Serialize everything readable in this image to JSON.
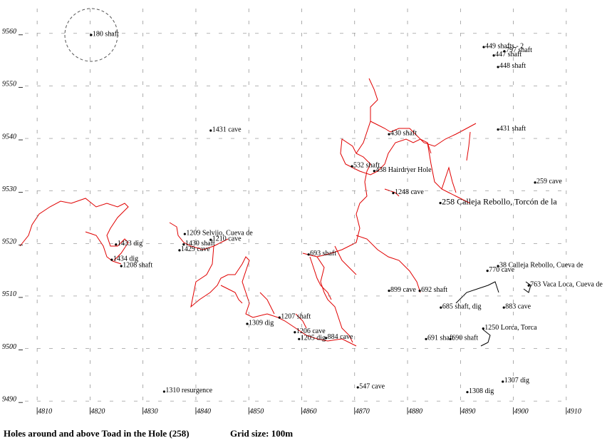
{
  "chart_data": {
    "type": "scatter",
    "title": "Holes around and above Toad in the Hole (258)",
    "subtitle": "Grid size: 100m",
    "x": [
      4820.2,
      4894.4,
      4898.3,
      4896.3,
      4897.1,
      4842.8,
      4897.1,
      4876.5,
      4869.5,
      4873.7,
      4904.1,
      4877.3,
      4886.2,
      4837.9,
      4842.8,
      4824.9,
      4837.7,
      4836.9,
      4861.3,
      4824.1,
      4825.9,
      4897.1,
      4895.1,
      4902.9,
      4876.5,
      4882.3,
      4886.3,
      4898.2,
      4855.8,
      4849.7,
      4894.3,
      4858.7,
      4859.5,
      4864.6,
      4883.5,
      4888.1,
      4898.0,
      4870.6,
      4891.3,
      4834.0
    ],
    "values": [
      9559.7,
      9557.4,
      9556.6,
      9555.8,
      9553.6,
      9541.5,
      9541.7,
      9540.8,
      9534.7,
      9533.8,
      9531.6,
      9529.6,
      9527.7,
      9521.8,
      9520.7,
      9519.8,
      9519.8,
      9518.7,
      9517.9,
      9516.9,
      9515.7,
      9515.7,
      9514.8,
      9512.0,
      9511.0,
      9511.0,
      9507.8,
      9507.8,
      9505.9,
      9504.7,
      9503.8,
      9503.1,
      9501.8,
      9502.0,
      9501.8,
      9501.8,
      9493.7,
      9492.6,
      9491.7,
      9491.8
    ],
    "point_labels": [
      "180 shaft",
      "449 shafts - 2",
      "797 shaft",
      "447 shaft",
      "448 shaft",
      "1431 cave",
      "431 shaft",
      "430 shaft",
      "532 shaft",
      "438 Hairdryer Hole",
      "259 cave",
      "1248 cave",
      "258 Calleja Rebollo, Torcón de la",
      "1209 Selvijo, Cueva de",
      "1210 cave",
      "1433 dig",
      "1430 shaft",
      "1429 cave",
      "693 shaft",
      "1434 dig",
      "1208 shaft",
      "38 Calleja Rebollo, Cueva de",
      "770 cave",
      "763 Vaca Loca, Cueva de",
      "899 cave",
      "692 shaft",
      "685 shaft, dig",
      "883 cave",
      "1207 shaft",
      "1309 dig",
      "1250 Lorca, Torca",
      "1206 cave",
      "1205 dig",
      "884 cave",
      "691 shaft",
      "690 shaft",
      "1307 dig",
      "547 cave",
      "1308 dig",
      "1310 resurgence"
    ],
    "color": "#000000",
    "xlim": [
      4805,
      4915
    ],
    "ylim": [
      9485,
      9565
    ],
    "xticks": [
      4810,
      4820,
      4830,
      4840,
      4850,
      4860,
      4870,
      4880,
      4890,
      4900,
      4910
    ],
    "yticks": [
      9490,
      9500,
      9510,
      9520,
      9530,
      9540,
      9550,
      9560
    ],
    "grid": true
  }
}
